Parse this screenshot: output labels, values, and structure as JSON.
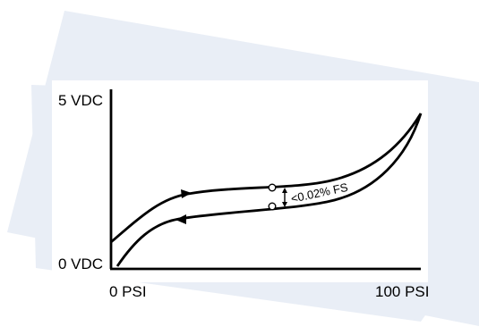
{
  "diagram": {
    "y_axis": {
      "top_label": "5 VDC",
      "bottom_label": "0 VDC"
    },
    "x_axis": {
      "left_label": "0 PSI",
      "right_label": "100 PSI"
    },
    "annotation": "<0.02% FS",
    "colors": {
      "background_band": "#e9eef6",
      "curve": "#000000",
      "text": "#000000"
    }
  }
}
